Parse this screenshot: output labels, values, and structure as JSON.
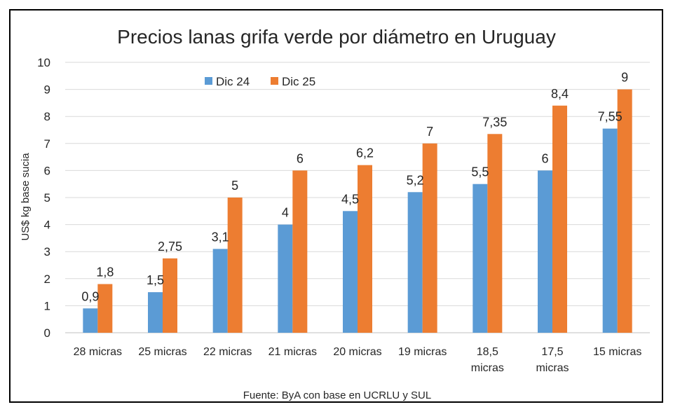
{
  "chart_data": {
    "type": "bar",
    "title": "Precios lanas grifa verde por diámetro en Uruguay",
    "ylabel": "US$ kg base sucia",
    "xlabel": "",
    "source": "Fuente: ByA con base en UCRLU y SUL",
    "ylim": [
      0,
      10
    ],
    "yticks": [
      "0",
      "1",
      "2",
      "3",
      "4",
      "5",
      "6",
      "7",
      "8",
      "9",
      "10"
    ],
    "grid": true,
    "legend_position": "top-left",
    "categories": [
      [
        "28 micras"
      ],
      [
        "25 micras"
      ],
      [
        "22 micras"
      ],
      [
        "21 micras"
      ],
      [
        "20 micras"
      ],
      [
        "19 micras"
      ],
      [
        "18,5",
        "micras"
      ],
      [
        "17,5",
        "micras"
      ],
      [
        "15 micras"
      ]
    ],
    "series": [
      {
        "name": "Dic 24",
        "color": "#5B9BD5",
        "values": [
          0.9,
          1.5,
          3.1,
          4,
          4.5,
          5.2,
          5.5,
          6,
          7.55
        ],
        "labels": [
          "0,9",
          "1,5",
          "3,1",
          "4",
          "4,5",
          "5,2",
          "5,5",
          "6",
          "7,55"
        ]
      },
      {
        "name": "Dic 25",
        "color": "#ED7D31",
        "values": [
          1.8,
          2.75,
          5,
          6,
          6.2,
          7,
          7.35,
          8.4,
          9
        ],
        "labels": [
          "1,8",
          "2,75",
          "5",
          "6",
          "6,2",
          "7",
          "7,35",
          "8,4",
          "9"
        ]
      }
    ]
  }
}
